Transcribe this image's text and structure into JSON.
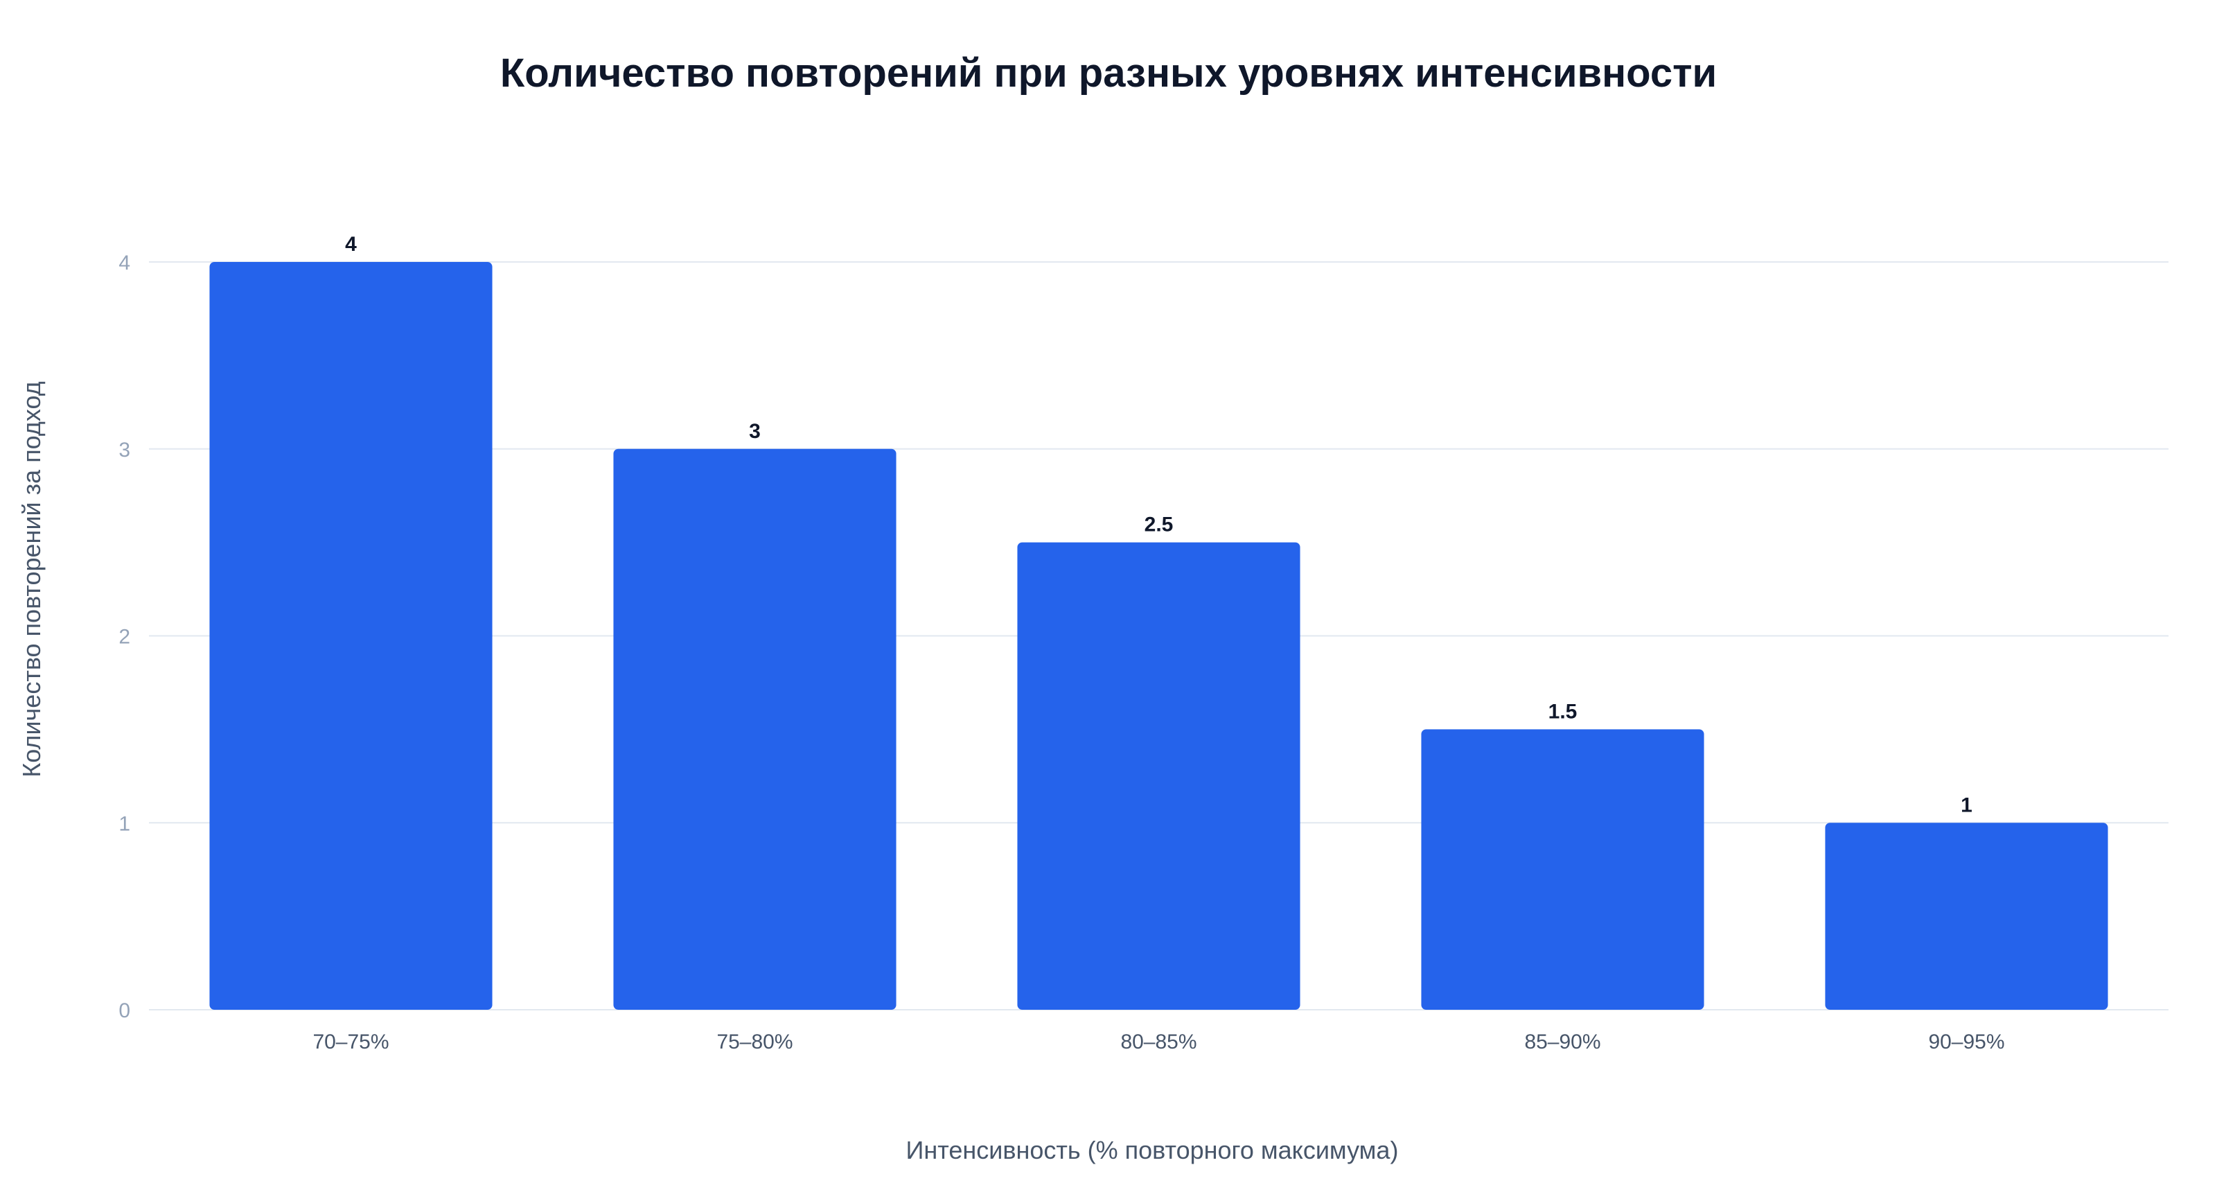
{
  "chart_data": {
    "type": "bar",
    "title": "Количество повторений при разных уровнях интенсивности",
    "xlabel": "Интенсивность (% повторного максимума)",
    "ylabel": "Количество повторений за подход",
    "categories": [
      "70–75%",
      "75–80%",
      "80–85%",
      "85–90%",
      "90–95%"
    ],
    "values": [
      4,
      3,
      2.5,
      1.5,
      1
    ],
    "data_labels": [
      "4",
      "3",
      "2.5",
      "1.5",
      "1"
    ],
    "y_ticks": [
      "0",
      "1",
      "2",
      "3",
      "4"
    ],
    "ylim": [
      0,
      4
    ],
    "grid": true,
    "legend": "none",
    "bar_color": "#2563eb"
  }
}
